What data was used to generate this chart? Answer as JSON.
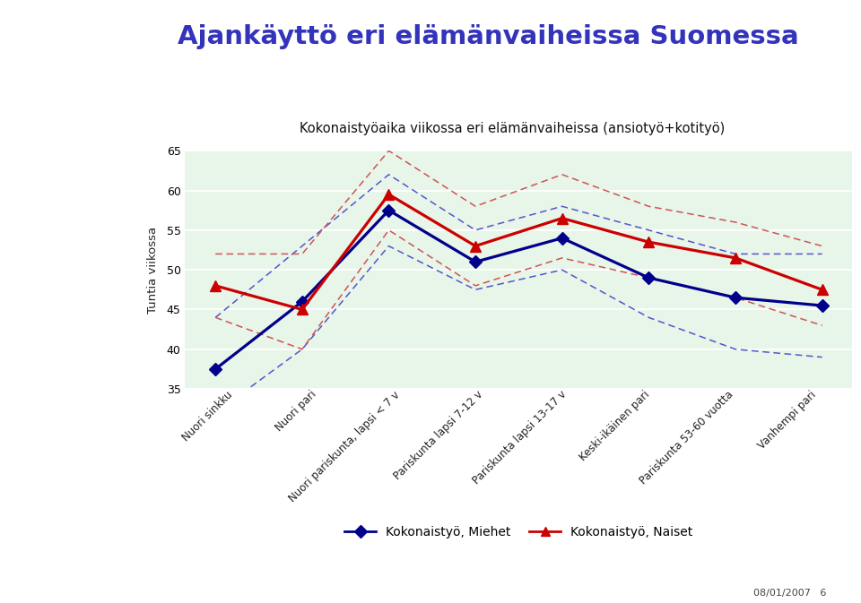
{
  "title": "Ajankäyttö eri elämänvaiheissa Suomessa",
  "subtitle": "Kokonaistyöaika viikossa eri elämänvaiheissa (ansiotyö+kotityö)",
  "ylabel": "Tuntia viikossa",
  "categories": [
    "Nuori sinkku",
    "Nuori pari",
    "Nuori pariskunta, lapsi < 7 v",
    "Pariskunta lapsi 7-12 v",
    "Pariskunta lapsi 13-17 v",
    "Keski-ikäinen pari",
    "Pariskunta 53-60 vuotta",
    "Vanhempi pari"
  ],
  "miehet": [
    37.5,
    46.0,
    57.5,
    51.0,
    54.0,
    49.0,
    46.5,
    45.5
  ],
  "naiset": [
    48.0,
    45.0,
    59.5,
    53.0,
    56.5,
    53.5,
    51.5,
    47.5
  ],
  "miehet_upper": [
    44.0,
    53.0,
    62.0,
    55.0,
    58.0,
    55.0,
    52.0,
    52.0
  ],
  "miehet_lower": [
    32.0,
    40.0,
    53.0,
    47.5,
    50.0,
    44.0,
    40.0,
    39.0
  ],
  "naiset_upper": [
    52.0,
    52.0,
    65.0,
    58.0,
    62.0,
    58.0,
    56.0,
    53.0
  ],
  "naiset_lower": [
    44.0,
    40.0,
    55.0,
    48.0,
    51.5,
    49.0,
    46.5,
    43.0
  ],
  "ylim": [
    35,
    65
  ],
  "yticks": [
    35,
    40,
    45,
    50,
    55,
    60,
    65
  ],
  "miehet_color": "#00008B",
  "naiset_color": "#CC0000",
  "ci_miehet_color": "#5555CC",
  "ci_naiset_color": "#CC5555",
  "legend_miehet": "Kokonaistyö, Miehet",
  "legend_naiset": "Kokonaistyö, Naiset",
  "title_color": "#3333BB",
  "chart_bg_color": "#E8F5E9",
  "left_bar_color": "#2B5BA8",
  "header_line1_color": "#1A1A99",
  "header_line2_color": "#E07820",
  "slide_bg": "#FFFFFF",
  "date_text": "08/01/2007   6"
}
